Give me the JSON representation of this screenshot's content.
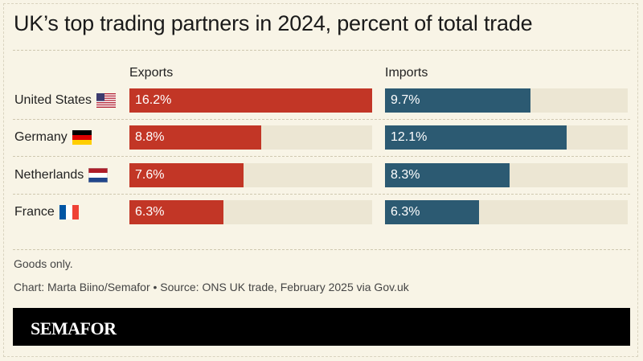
{
  "title": "UK’s top trading partners in 2024, percent of total trade",
  "chart_data": {
    "type": "bar",
    "title": "UK’s top trading partners in 2024, percent of total trade",
    "categories": [
      "United States",
      "Germany",
      "Netherlands",
      "France"
    ],
    "series": [
      {
        "name": "Exports",
        "values": [
          16.2,
          8.8,
          7.6,
          6.3
        ],
        "labels": [
          "16.2%",
          "8.8%",
          "7.6%",
          "6.3%"
        ],
        "color": "#c23626"
      },
      {
        "name": "Imports",
        "values": [
          9.7,
          12.1,
          8.3,
          6.3
        ],
        "labels": [
          "9.7%",
          "12.1%",
          "8.3%",
          "6.3%"
        ],
        "color": "#2c5a72"
      }
    ],
    "xlim": [
      0,
      16.2
    ],
    "track_color": "#ece6d3",
    "grid": false,
    "legend": "column-headers"
  },
  "rows": [
    {
      "label": "United States",
      "flag": "us-flag-icon"
    },
    {
      "label": "Germany",
      "flag": "germany-flag-icon"
    },
    {
      "label": "Netherlands",
      "flag": "netherlands-flag-icon"
    },
    {
      "label": "France",
      "flag": "france-flag-icon"
    }
  ],
  "notes": {
    "scope": "Goods only.",
    "credit": "Chart: Marta Biino/Semafor • Source: ONS UK trade, February 2025 via Gov.uk"
  },
  "brand": {
    "name": "SEMAFOR",
    "background": "#000000",
    "page_background": "#f8f4e6"
  }
}
